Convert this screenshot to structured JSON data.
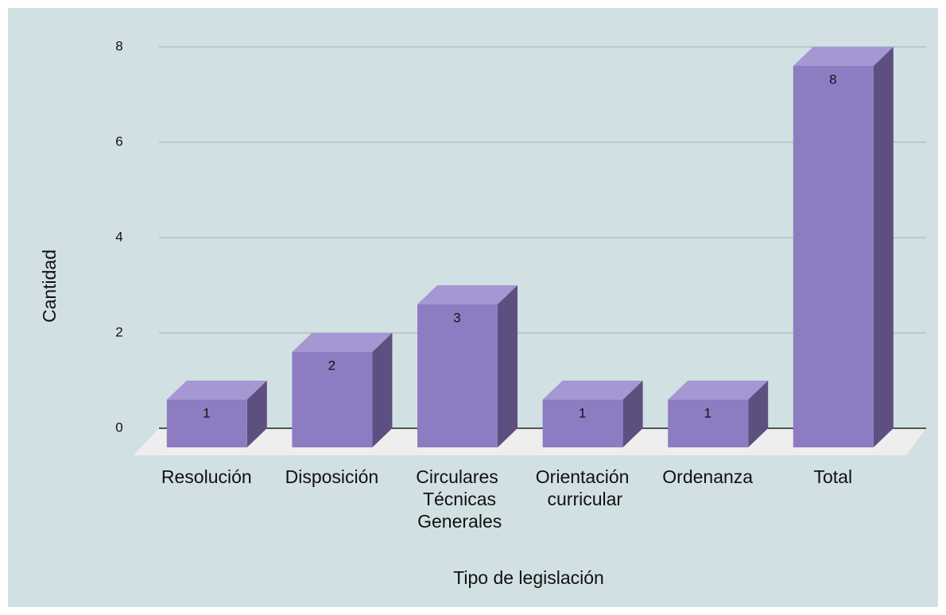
{
  "chart_data": {
    "type": "bar3d",
    "x_label": "Tipo de legislación",
    "y_label": "Cantidad",
    "categories": [
      "Resolución",
      "Disposición",
      "Circulares Técnicas Generales",
      "Orientación curricular",
      "Ordenanza",
      "Total"
    ],
    "values": [
      1,
      2,
      3,
      1,
      1,
      8
    ],
    "color": "#8e7cc3",
    "ylim": [
      0,
      8
    ],
    "yticks": [
      0,
      2,
      4,
      6,
      8
    ],
    "grid": true
  }
}
